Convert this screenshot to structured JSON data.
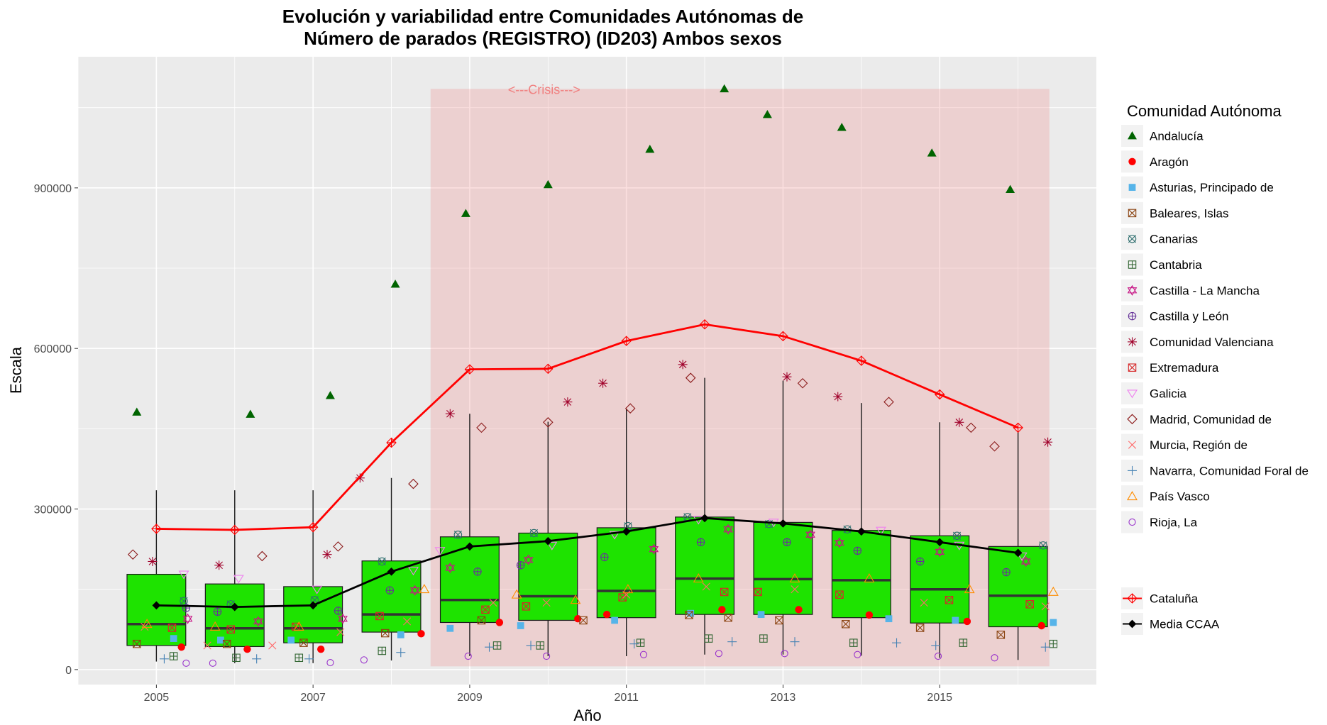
{
  "chart_data": {
    "type": "box",
    "title_line1": "Evolución y variabilidad entre Comunidades Autónomas de",
    "title_line2": "Número de parados (REGISTRO) (ID203) Ambos sexos",
    "xlabel": "Año",
    "ylabel": "Escala",
    "x_ticks": [
      2005,
      2007,
      2009,
      2011,
      2013,
      2015
    ],
    "y_ticks": [
      0,
      300000,
      600000,
      900000
    ],
    "y_tick_labels": [
      "0",
      "300000",
      "600000",
      "900000"
    ],
    "xlim": [
      2004,
      2017
    ],
    "ylim": [
      -28000,
      1145000
    ],
    "grid": true,
    "legend_position": "right",
    "crisis_band": {
      "label": "<---Crisis--->",
      "x_start": 2008.5,
      "x_end": 2016.4,
      "y_top": 1085000,
      "color": "#f08080"
    },
    "years": [
      2005,
      2006,
      2007,
      2008,
      2009,
      2010,
      2011,
      2012,
      2013,
      2014,
      2015,
      2016
    ],
    "boxes": [
      {
        "year": 2005,
        "lower": 15000,
        "q1": 45000,
        "median": 85000,
        "q3": 178000,
        "upper": 335000
      },
      {
        "year": 2006,
        "lower": 12000,
        "q1": 43000,
        "median": 77000,
        "q3": 160000,
        "upper": 335000
      },
      {
        "year": 2007,
        "lower": 12000,
        "q1": 50000,
        "median": 77000,
        "q3": 155000,
        "upper": 335000
      },
      {
        "year": 2008,
        "lower": 17000,
        "q1": 70000,
        "median": 103000,
        "q3": 203000,
        "upper": 358000
      },
      {
        "year": 2009,
        "lower": 25000,
        "q1": 88000,
        "median": 130000,
        "q3": 248000,
        "upper": 478000
      },
      {
        "year": 2010,
        "lower": 25000,
        "q1": 92000,
        "median": 137000,
        "q3": 255000,
        "upper": 463000
      },
      {
        "year": 2011,
        "lower": 25000,
        "q1": 97000,
        "median": 147000,
        "q3": 265000,
        "upper": 487000
      },
      {
        "year": 2012,
        "lower": 28000,
        "q1": 103000,
        "median": 170000,
        "q3": 285000,
        "upper": 545000
      },
      {
        "year": 2013,
        "lower": 28000,
        "q1": 103000,
        "median": 169000,
        "q3": 275000,
        "upper": 540000
      },
      {
        "year": 2014,
        "lower": 26000,
        "q1": 97000,
        "median": 167000,
        "q3": 260000,
        "upper": 498000
      },
      {
        "year": 2015,
        "lower": 22000,
        "q1": 87000,
        "median": 150000,
        "q3": 250000,
        "upper": 462000
      },
      {
        "year": 2016,
        "lower": 18000,
        "q1": 80000,
        "median": 138000,
        "q3": 230000,
        "upper": 445000
      }
    ],
    "box_fill": "#1ee300",
    "median_color": "#333333",
    "media_ccaa": {
      "name": "Media CCAA",
      "color": "#000000",
      "values": [
        120000,
        117000,
        120000,
        183000,
        230000,
        240000,
        258000,
        283000,
        273000,
        258000,
        238000,
        218000
      ]
    },
    "cataluna": {
      "name": "Cataluña",
      "color": "#ff0000",
      "values": [
        263000,
        261000,
        266000,
        424000,
        561000,
        562000,
        614000,
        645000,
        623000,
        577000,
        514000,
        452000
      ]
    },
    "legend_title": "Comunidad Autónoma",
    "series": [
      {
        "name": "Andalucía",
        "shape": "triangle-filled",
        "color": "#006400",
        "offset": 0.0,
        "points": [
          [
            2004.75,
            481000
          ],
          [
            2006.2,
            477000
          ],
          [
            2007.22,
            512000
          ],
          [
            2008.05,
            720000
          ],
          [
            2008.95,
            852000
          ],
          [
            2010.0,
            906000
          ],
          [
            2011.3,
            972000
          ],
          [
            2012.25,
            1085000
          ],
          [
            2012.8,
            1037000
          ],
          [
            2013.75,
            1013000
          ],
          [
            2014.9,
            965000
          ],
          [
            2015.9,
            897000
          ]
        ]
      },
      {
        "name": "Aragón",
        "shape": "circle-filled",
        "color": "#ff0000",
        "offset": 0.0,
        "points": [
          [
            2005.32,
            42000
          ],
          [
            2006.16,
            38000
          ],
          [
            2007.1,
            38000
          ],
          [
            2008.38,
            67000
          ],
          [
            2009.38,
            88000
          ],
          [
            2010.38,
            95000
          ],
          [
            2010.75,
            103000
          ],
          [
            2012.22,
            112000
          ],
          [
            2013.2,
            112000
          ],
          [
            2014.1,
            102000
          ],
          [
            2015.35,
            90000
          ],
          [
            2016.3,
            82000
          ]
        ]
      },
      {
        "name": "Asturias, Principado de",
        "shape": "square-filled",
        "color": "#56b4e9",
        "offset": 0.0,
        "points": [
          [
            2005.22,
            58000
          ],
          [
            2005.82,
            55000
          ],
          [
            2006.72,
            55000
          ],
          [
            2008.12,
            65000
          ],
          [
            2008.75,
            77000
          ],
          [
            2009.65,
            82000
          ],
          [
            2010.85,
            92000
          ],
          [
            2011.82,
            105000
          ],
          [
            2012.72,
            103000
          ],
          [
            2014.35,
            95000
          ],
          [
            2015.2,
            92000
          ],
          [
            2016.45,
            88000
          ]
        ]
      },
      {
        "name": "Baleares, Islas",
        "shape": "square-x",
        "color": "#8b4513",
        "offset": 0.0,
        "points": [
          [
            2004.75,
            48000
          ],
          [
            2005.9,
            48000
          ],
          [
            2006.88,
            50000
          ],
          [
            2007.92,
            68000
          ],
          [
            2009.15,
            92000
          ],
          [
            2010.45,
            92000
          ],
          [
            2011.8,
            102000
          ],
          [
            2012.3,
            97000
          ],
          [
            2012.95,
            92000
          ],
          [
            2013.8,
            85000
          ],
          [
            2014.75,
            78000
          ],
          [
            2015.78,
            65000
          ]
        ]
      },
      {
        "name": "Canarias",
        "shape": "circle-x",
        "color": "#2f6f6f",
        "offset": 0.0,
        "points": [
          [
            2005.35,
            128000
          ],
          [
            2005.95,
            122000
          ],
          [
            2007.02,
            130000
          ],
          [
            2007.88,
            202000
          ],
          [
            2008.85,
            252000
          ],
          [
            2009.82,
            255000
          ],
          [
            2011.02,
            268000
          ],
          [
            2011.78,
            285000
          ],
          [
            2012.82,
            272000
          ],
          [
            2013.82,
            262000
          ],
          [
            2015.22,
            250000
          ],
          [
            2016.32,
            232000
          ]
        ]
      },
      {
        "name": "Cantabria",
        "shape": "square-plus",
        "color": "#336633",
        "offset": 0.0,
        "points": [
          [
            2005.22,
            25000
          ],
          [
            2006.02,
            22000
          ],
          [
            2006.82,
            22000
          ],
          [
            2007.88,
            35000
          ],
          [
            2009.35,
            45000
          ],
          [
            2009.9,
            45000
          ],
          [
            2011.18,
            50000
          ],
          [
            2012.05,
            58000
          ],
          [
            2012.75,
            58000
          ],
          [
            2013.9,
            50000
          ],
          [
            2015.3,
            50000
          ],
          [
            2016.45,
            48000
          ]
        ]
      },
      {
        "name": "Castilla - La Mancha",
        "shape": "hexagram",
        "color": "#c71585",
        "offset": 0.0,
        "points": [
          [
            2005.4,
            95000
          ],
          [
            2006.3,
            90000
          ],
          [
            2007.38,
            95000
          ],
          [
            2008.3,
            148000
          ],
          [
            2008.75,
            190000
          ],
          [
            2009.75,
            205000
          ],
          [
            2011.35,
            225000
          ],
          [
            2012.3,
            262000
          ],
          [
            2013.35,
            252000
          ],
          [
            2013.72,
            237000
          ],
          [
            2015.0,
            220000
          ],
          [
            2016.1,
            202000
          ]
        ]
      },
      {
        "name": "Castilla y León",
        "shape": "circle-plus",
        "color": "#663399",
        "offset": 0.0,
        "points": [
          [
            2005.38,
            115000
          ],
          [
            2005.78,
            108000
          ],
          [
            2007.32,
            110000
          ],
          [
            2007.98,
            148000
          ],
          [
            2009.1,
            183000
          ],
          [
            2009.65,
            195000
          ],
          [
            2010.72,
            210000
          ],
          [
            2011.95,
            238000
          ],
          [
            2013.05,
            238000
          ],
          [
            2013.95,
            222000
          ],
          [
            2014.75,
            202000
          ],
          [
            2015.85,
            182000
          ]
        ]
      },
      {
        "name": "Comunidad Valenciana",
        "shape": "asterisk",
        "color": "#a0002a",
        "offset": 0.0,
        "points": [
          [
            2004.95,
            202000
          ],
          [
            2005.8,
            195000
          ],
          [
            2007.18,
            215000
          ],
          [
            2007.6,
            358000
          ],
          [
            2008.75,
            478000
          ],
          [
            2010.25,
            500000
          ],
          [
            2010.7,
            535000
          ],
          [
            2011.72,
            570000
          ],
          [
            2013.05,
            547000
          ],
          [
            2013.7,
            510000
          ],
          [
            2015.25,
            462000
          ],
          [
            2016.38,
            425000
          ]
        ]
      },
      {
        "name": "Extremadura",
        "shape": "square-x2",
        "color": "#d62728",
        "offset": 0.0,
        "points": [
          [
            2005.2,
            78000
          ],
          [
            2005.95,
            75000
          ],
          [
            2006.78,
            80000
          ],
          [
            2007.85,
            100000
          ],
          [
            2009.2,
            112000
          ],
          [
            2009.72,
            118000
          ],
          [
            2010.95,
            135000
          ],
          [
            2012.25,
            145000
          ],
          [
            2012.68,
            145000
          ],
          [
            2013.72,
            140000
          ],
          [
            2015.12,
            130000
          ],
          [
            2016.15,
            122000
          ]
        ]
      },
      {
        "name": "Galicia",
        "shape": "triangle-down",
        "color": "#ee82ee",
        "offset": 0.0,
        "points": [
          [
            2005.35,
            178000
          ],
          [
            2006.05,
            170000
          ],
          [
            2007.05,
            150000
          ],
          [
            2008.28,
            185000
          ],
          [
            2008.62,
            222000
          ],
          [
            2010.05,
            232000
          ],
          [
            2010.85,
            252000
          ],
          [
            2011.92,
            280000
          ],
          [
            2012.88,
            275000
          ],
          [
            2014.25,
            260000
          ],
          [
            2015.25,
            232000
          ],
          [
            2016.05,
            212000
          ]
        ]
      },
      {
        "name": "Madrid, Comunidad de",
        "shape": "diamond",
        "color": "#8b1a1a",
        "offset": 0.0,
        "points": [
          [
            2004.7,
            215000
          ],
          [
            2006.35,
            212000
          ],
          [
            2007.32,
            230000
          ],
          [
            2008.28,
            347000
          ],
          [
            2009.15,
            452000
          ],
          [
            2010.0,
            462000
          ],
          [
            2011.05,
            488000
          ],
          [
            2011.82,
            545000
          ],
          [
            2013.25,
            535000
          ],
          [
            2014.35,
            500000
          ],
          [
            2015.4,
            452000
          ],
          [
            2015.7,
            417000
          ]
        ]
      },
      {
        "name": "Murcia, Región de",
        "shape": "x",
        "color": "#ff6b6b",
        "offset": 0.0,
        "points": [
          [
            2004.85,
            80000
          ],
          [
            2005.65,
            45000
          ],
          [
            2006.48,
            45000
          ],
          [
            2007.35,
            70000
          ],
          [
            2008.2,
            90000
          ],
          [
            2009.3,
            125000
          ],
          [
            2009.98,
            125000
          ],
          [
            2011.0,
            140000
          ],
          [
            2012.02,
            155000
          ],
          [
            2013.15,
            150000
          ],
          [
            2014.8,
            125000
          ],
          [
            2016.35,
            118000
          ]
        ]
      },
      {
        "name": "Navarra, Comunidad Foral de",
        "shape": "plus",
        "color": "#4682b4",
        "offset": 0.0,
        "points": [
          [
            2005.1,
            20000
          ],
          [
            2006.28,
            20000
          ],
          [
            2006.95,
            20000
          ],
          [
            2008.12,
            32000
          ],
          [
            2009.25,
            42000
          ],
          [
            2009.78,
            45000
          ],
          [
            2011.1,
            48000
          ],
          [
            2012.35,
            52000
          ],
          [
            2013.15,
            52000
          ],
          [
            2014.45,
            50000
          ],
          [
            2014.95,
            45000
          ],
          [
            2016.35,
            42000
          ]
        ]
      },
      {
        "name": "País Vasco",
        "shape": "triangle-open",
        "color": "#ff8c00",
        "offset": 0.0,
        "points": [
          [
            2004.88,
            85000
          ],
          [
            2005.75,
            80000
          ],
          [
            2006.82,
            80000
          ],
          [
            2008.42,
            150000
          ],
          [
            2009.6,
            140000
          ],
          [
            2010.35,
            130000
          ],
          [
            2011.02,
            150000
          ],
          [
            2011.92,
            170000
          ],
          [
            2013.15,
            170000
          ],
          [
            2014.1,
            170000
          ],
          [
            2015.38,
            150000
          ],
          [
            2016.45,
            145000
          ]
        ]
      },
      {
        "name": "Rioja, La",
        "shape": "circle-open",
        "color": "#9932cc",
        "offset": 0.0,
        "points": [
          [
            2005.38,
            12000
          ],
          [
            2005.72,
            12000
          ],
          [
            2007.22,
            13000
          ],
          [
            2007.65,
            18000
          ],
          [
            2008.98,
            25000
          ],
          [
            2009.98,
            25000
          ],
          [
            2011.22,
            28000
          ],
          [
            2012.18,
            30000
          ],
          [
            2013.02,
            30000
          ],
          [
            2013.95,
            28000
          ],
          [
            2014.98,
            25000
          ],
          [
            2015.7,
            22000
          ]
        ]
      }
    ]
  }
}
